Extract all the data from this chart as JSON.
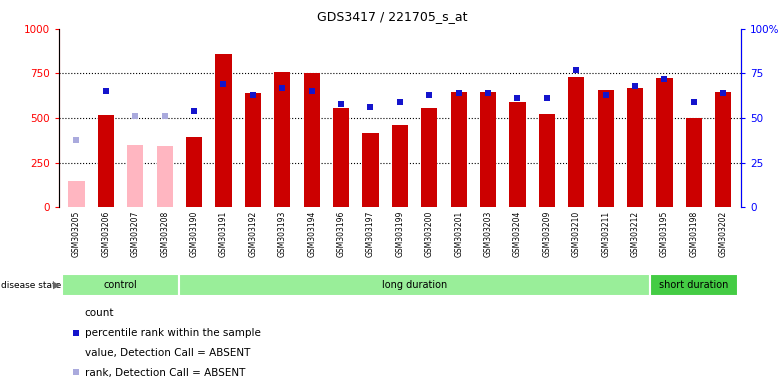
{
  "title": "GDS3417 / 221705_s_at",
  "samples": [
    "GSM303205",
    "GSM303206",
    "GSM303207",
    "GSM303208",
    "GSM303190",
    "GSM303191",
    "GSM303192",
    "GSM303193",
    "GSM303194",
    "GSM303196",
    "GSM303197",
    "GSM303199",
    "GSM303200",
    "GSM303201",
    "GSM303203",
    "GSM303204",
    "GSM303209",
    "GSM303210",
    "GSM303211",
    "GSM303212",
    "GSM303195",
    "GSM303198",
    "GSM303202"
  ],
  "count_values": [
    150,
    520,
    350,
    345,
    395,
    860,
    640,
    760,
    750,
    555,
    415,
    460,
    555,
    645,
    645,
    590,
    525,
    730,
    655,
    670,
    725,
    500,
    645
  ],
  "percentile_values": [
    38,
    65,
    51,
    51,
    54,
    69,
    63,
    67,
    65,
    58,
    56,
    59,
    63,
    64,
    64,
    61,
    61,
    77,
    63,
    68,
    72,
    59,
    64
  ],
  "absent_mask": [
    true,
    false,
    true,
    true,
    false,
    false,
    false,
    false,
    false,
    false,
    false,
    false,
    false,
    false,
    false,
    false,
    false,
    false,
    false,
    false,
    false,
    false,
    false
  ],
  "bar_color": "#CC0000",
  "absent_bar_color": "#FFB6C1",
  "dot_color": "#1414CC",
  "absent_dot_color": "#AAAADD",
  "group_defs": [
    {
      "label": "control",
      "start": 0,
      "end": 4,
      "color": "#99EE99"
    },
    {
      "label": "long duration",
      "start": 4,
      "end": 20,
      "color": "#99EE99"
    },
    {
      "label": "short duration",
      "start": 20,
      "end": 23,
      "color": "#44CC44"
    }
  ],
  "yticks_left": [
    0,
    250,
    500,
    750,
    1000
  ],
  "yticks_right": [
    0,
    25,
    50,
    75,
    100
  ],
  "legend_items": [
    {
      "color": "#CC0000",
      "kind": "bar",
      "label": "count"
    },
    {
      "color": "#1414CC",
      "kind": "dot",
      "label": "percentile rank within the sample"
    },
    {
      "color": "#FFB6C1",
      "kind": "bar",
      "label": "value, Detection Call = ABSENT"
    },
    {
      "color": "#AAAADD",
      "kind": "dot",
      "label": "rank, Detection Call = ABSENT"
    }
  ]
}
